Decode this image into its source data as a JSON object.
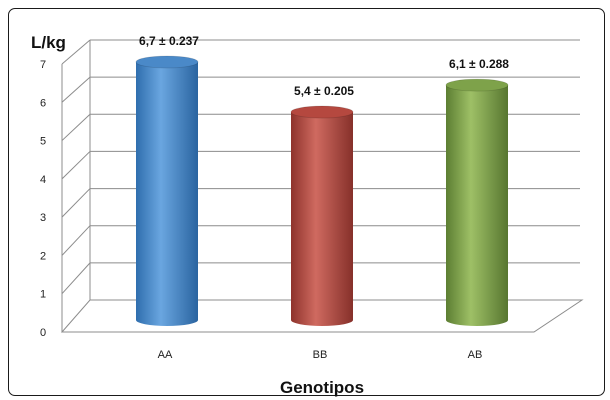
{
  "chart_data": {
    "type": "bar",
    "categories": [
      "AA",
      "BB",
      "AB"
    ],
    "values": [
      6.7,
      5.4,
      6.1
    ],
    "errors": [
      0.237,
      0.205,
      0.288
    ],
    "data_labels": [
      "6,7 ± 0.237",
      "5,4 ± 0.205",
      "6,1 ± 0.288"
    ],
    "colors": [
      "#4a89c8",
      "#b5483f",
      "#7ea24a"
    ],
    "ylabel": "L/kg",
    "xlabel": "Genotipos",
    "ylim": [
      0,
      7
    ],
    "yticks": [
      "0",
      "1",
      "2",
      "3",
      "4",
      "5",
      "6",
      "7"
    ],
    "grid": true
  }
}
